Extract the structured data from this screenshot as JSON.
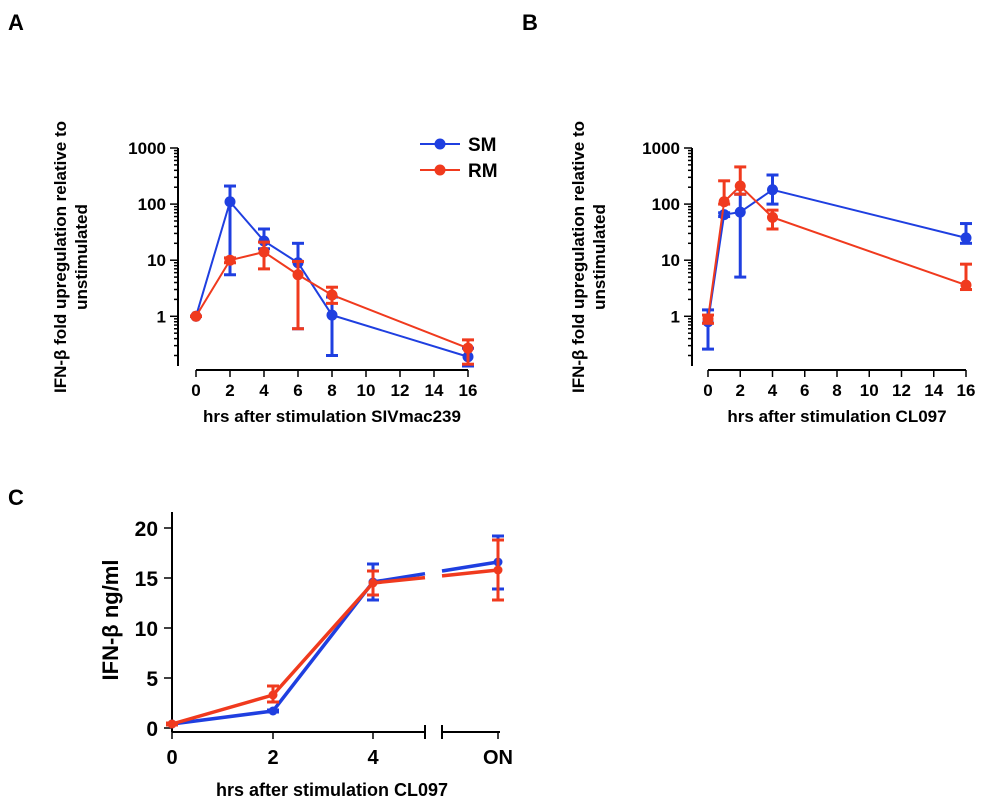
{
  "colors": {
    "SM": "#1f3fe0",
    "RM": "#f03a1e",
    "axis": "#000000"
  },
  "chart_data": [
    {
      "panel": "A",
      "type": "line",
      "yscale": "log",
      "xlabel": "hrs after stimulation SIVmac239",
      "ylabel": "IFN-β fold upregulation relative to unstimulated",
      "ylim": [
        0.13,
        1000
      ],
      "xlim": [
        0,
        16
      ],
      "xticks": [
        0,
        2,
        4,
        6,
        8,
        10,
        12,
        14,
        16
      ],
      "yticks": [
        1,
        10,
        100,
        1000
      ],
      "ytick_labels": [
        "1",
        "10",
        "100",
        "1000"
      ],
      "legend": [
        "SM",
        "RM"
      ],
      "legend_position": "top-right",
      "series": [
        {
          "name": "SM",
          "x": [
            0,
            2,
            4,
            6,
            8,
            16
          ],
          "y": [
            1,
            110,
            22,
            9,
            1.05,
            0.19
          ],
          "err_low": [
            1,
            5.5,
            16,
            0.6,
            0.2,
            0.13
          ],
          "err_high": [
            1,
            210,
            36,
            20,
            2.2,
            0.27
          ]
        },
        {
          "name": "RM",
          "x": [
            0,
            2,
            4,
            6,
            8,
            16
          ],
          "y": [
            1,
            10,
            14,
            5.5,
            2.4,
            0.27
          ],
          "err_low": [
            1,
            9,
            7,
            0.6,
            1.7,
            0.14
          ],
          "err_high": [
            1,
            11,
            21,
            9.5,
            3.3,
            0.38
          ]
        }
      ]
    },
    {
      "panel": "B",
      "type": "line",
      "yscale": "log",
      "xlabel": "hrs after stimulation CL097",
      "ylabel": "IFN-β fold upregulation relative to unstimulated",
      "ylim": [
        0.13,
        1000
      ],
      "xlim": [
        0,
        16
      ],
      "xticks": [
        0,
        2,
        4,
        6,
        8,
        10,
        12,
        14,
        16
      ],
      "yticks": [
        1,
        10,
        100,
        1000
      ],
      "ytick_labels": [
        "1",
        "10",
        "100",
        "1000"
      ],
      "series": [
        {
          "name": "SM",
          "x": [
            0,
            1,
            2,
            4,
            16
          ],
          "y": [
            0.8,
            65,
            72,
            180,
            25
          ],
          "err_low": [
            0.26,
            60,
            5,
            100,
            20
          ],
          "err_high": [
            1.3,
            70,
            150,
            330,
            45
          ]
        },
        {
          "name": "RM",
          "x": [
            0,
            1,
            2,
            4,
            16
          ],
          "y": [
            0.9,
            110,
            210,
            58,
            3.6
          ],
          "err_low": [
            0.75,
            100,
            150,
            36,
            3
          ],
          "err_high": [
            1.05,
            260,
            460,
            78,
            8.5
          ]
        }
      ]
    },
    {
      "panel": "C",
      "type": "line",
      "yscale": "linear",
      "xlabel": "hrs after stimulation CL097",
      "ylabel": "IFN-β ng/ml",
      "ylim": [
        0,
        20
      ],
      "yticks": [
        0,
        5,
        10,
        15,
        20
      ],
      "ytick_labels": [
        "0",
        "5",
        "10",
        "15",
        "20"
      ],
      "categories": [
        "0",
        "2",
        "4",
        "ON"
      ],
      "broken_x_axis": true,
      "series": [
        {
          "name": "SM",
          "y": [
            0.4,
            1.7,
            14.6,
            16.6
          ],
          "err_low": [
            0.3,
            1.6,
            12.8,
            13.9
          ],
          "err_high": [
            0.5,
            1.8,
            16.4,
            19.2
          ]
        },
        {
          "name": "RM",
          "y": [
            0.4,
            3.3,
            14.5,
            15.8
          ],
          "err_low": [
            0.3,
            2.6,
            13.3,
            12.8
          ],
          "err_high": [
            0.5,
            4.2,
            15.7,
            18.8
          ]
        }
      ]
    }
  ]
}
